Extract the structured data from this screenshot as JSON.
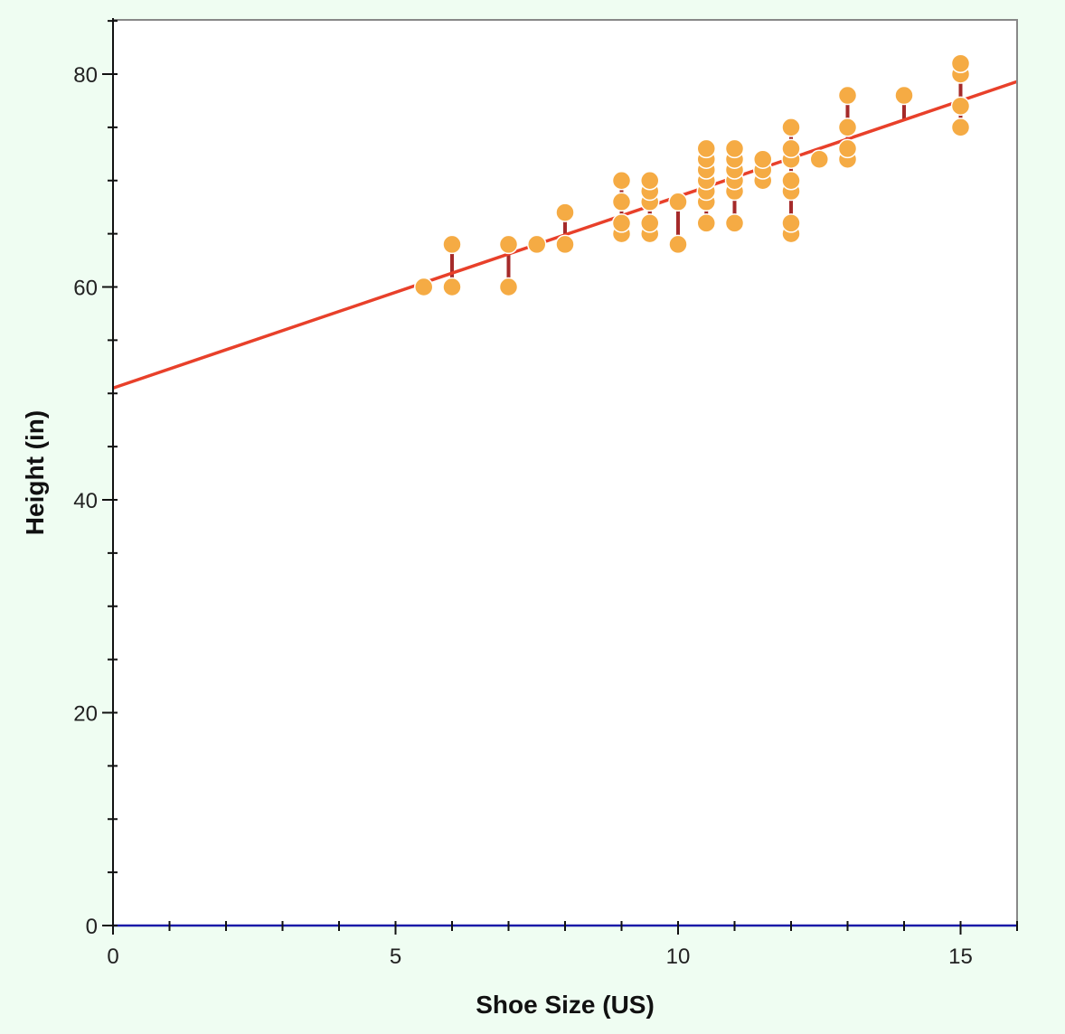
{
  "chart_data": {
    "type": "scatter",
    "xlabel": "Shoe Size (US)",
    "ylabel": "Height (in)",
    "xlim": [
      0,
      16
    ],
    "ylim": [
      0,
      85
    ],
    "x_ticks": [
      0,
      5,
      10,
      15
    ],
    "y_ticks": [
      0,
      20,
      40,
      60,
      80
    ],
    "grid": false,
    "colors": {
      "points": "#f5ab44",
      "point_stroke": "#ffffff",
      "fit_line": "#e8402a",
      "residuals": "#a52a2a",
      "x_axis": "#1a1aa8",
      "frame": "#888888",
      "plot_background": "#ffffff",
      "page_background": "#effdf2"
    },
    "fit_line": {
      "intercept": 50.5,
      "slope": 1.8
    },
    "points": [
      {
        "x": 5.5,
        "y": 60
      },
      {
        "x": 6,
        "y": 60
      },
      {
        "x": 6,
        "y": 64
      },
      {
        "x": 7,
        "y": 60
      },
      {
        "x": 7,
        "y": 64
      },
      {
        "x": 7.5,
        "y": 64
      },
      {
        "x": 8,
        "y": 64
      },
      {
        "x": 8,
        "y": 67
      },
      {
        "x": 9,
        "y": 65
      },
      {
        "x": 9,
        "y": 66
      },
      {
        "x": 9,
        "y": 68
      },
      {
        "x": 9,
        "y": 70
      },
      {
        "x": 9.5,
        "y": 65
      },
      {
        "x": 9.5,
        "y": 66
      },
      {
        "x": 9.5,
        "y": 68
      },
      {
        "x": 9.5,
        "y": 69
      },
      {
        "x": 9.5,
        "y": 70
      },
      {
        "x": 10,
        "y": 64
      },
      {
        "x": 10,
        "y": 68
      },
      {
        "x": 10.5,
        "y": 66
      },
      {
        "x": 10.5,
        "y": 68
      },
      {
        "x": 10.5,
        "y": 69
      },
      {
        "x": 10.5,
        "y": 70
      },
      {
        "x": 10.5,
        "y": 71
      },
      {
        "x": 10.5,
        "y": 72
      },
      {
        "x": 10.5,
        "y": 73
      },
      {
        "x": 11,
        "y": 66
      },
      {
        "x": 11,
        "y": 69
      },
      {
        "x": 11,
        "y": 70
      },
      {
        "x": 11,
        "y": 71
      },
      {
        "x": 11,
        "y": 72
      },
      {
        "x": 11,
        "y": 73
      },
      {
        "x": 11.5,
        "y": 70
      },
      {
        "x": 11.5,
        "y": 71
      },
      {
        "x": 11.5,
        "y": 72
      },
      {
        "x": 12,
        "y": 65
      },
      {
        "x": 12,
        "y": 66
      },
      {
        "x": 12,
        "y": 69
      },
      {
        "x": 12,
        "y": 70
      },
      {
        "x": 12,
        "y": 72
      },
      {
        "x": 12,
        "y": 73
      },
      {
        "x": 12,
        "y": 75
      },
      {
        "x": 12.5,
        "y": 72
      },
      {
        "x": 13,
        "y": 72
      },
      {
        "x": 13,
        "y": 73
      },
      {
        "x": 13,
        "y": 75
      },
      {
        "x": 13,
        "y": 78
      },
      {
        "x": 14,
        "y": 78
      },
      {
        "x": 15,
        "y": 75
      },
      {
        "x": 15,
        "y": 77
      },
      {
        "x": 15,
        "y": 80
      },
      {
        "x": 15,
        "y": 81
      }
    ]
  }
}
